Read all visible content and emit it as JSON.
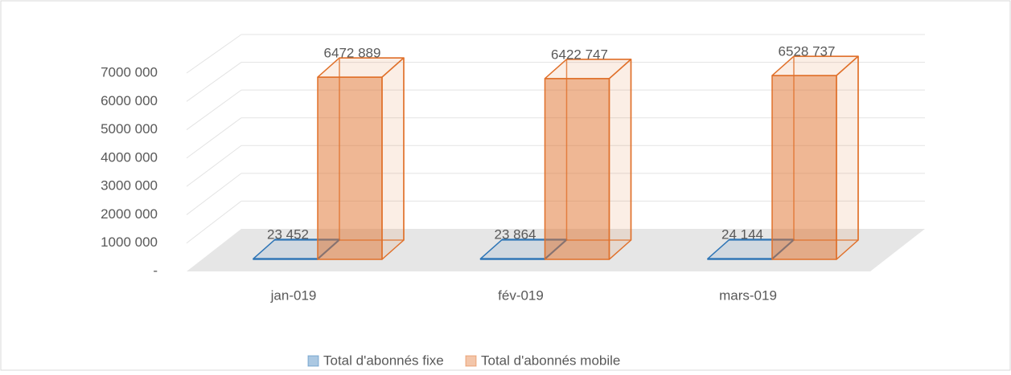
{
  "chart_data": {
    "type": "bar3d",
    "categories": [
      "jan-019",
      "fév-019",
      "mars-019"
    ],
    "series": [
      {
        "name": "Total d'abonnés fixe",
        "color": "#2e75b6",
        "values": [
          23452,
          23864,
          24144
        ],
        "value_labels": [
          "23 452",
          "23 864",
          "24 144"
        ]
      },
      {
        "name": "Total d'abonnés mobile",
        "color": "#e0702a",
        "values": [
          6472889,
          6422747,
          6528737
        ],
        "value_labels": [
          "6472 889",
          "6422 747",
          "6528 737"
        ]
      }
    ],
    "ylim": [
      0,
      7000000
    ],
    "yticks": [
      {
        "value": 0,
        "label": "-"
      },
      {
        "value": 1000000,
        "label": "1000 000"
      },
      {
        "value": 2000000,
        "label": "2000 000"
      },
      {
        "value": 3000000,
        "label": "3000 000"
      },
      {
        "value": 4000000,
        "label": "4000 000"
      },
      {
        "value": 5000000,
        "label": "5000 000"
      },
      {
        "value": 6000000,
        "label": "6000 000"
      },
      {
        "value": 7000000,
        "label": "7000 000"
      }
    ],
    "grid": true,
    "legend": "bottom"
  }
}
